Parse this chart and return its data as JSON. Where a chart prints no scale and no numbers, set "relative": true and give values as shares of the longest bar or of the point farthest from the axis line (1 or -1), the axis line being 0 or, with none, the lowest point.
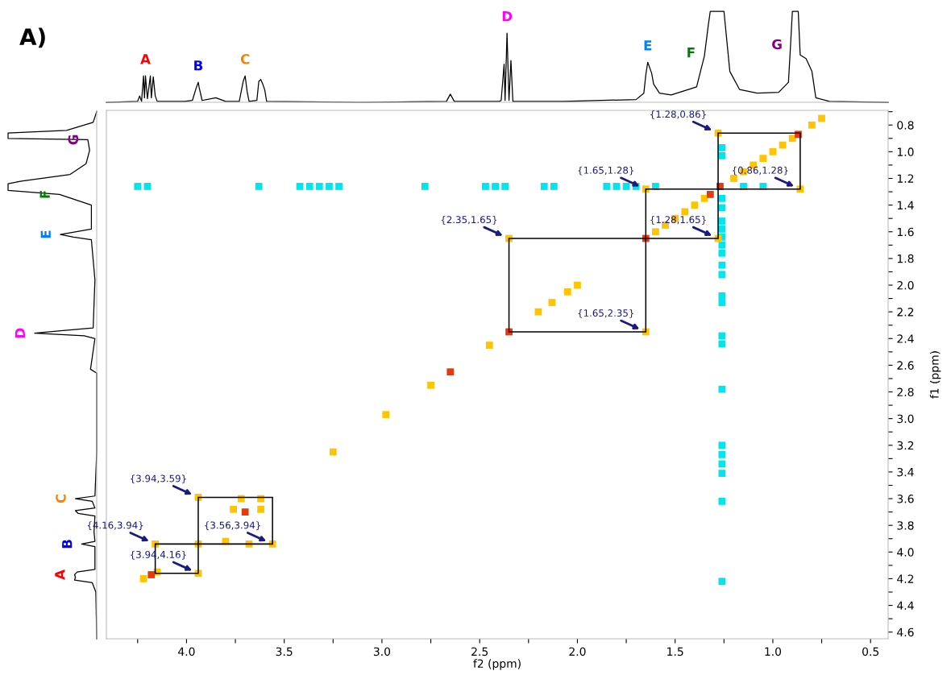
{
  "chart_data": [
    {
      "type": "line",
      "title": "A)",
      "relative": true,
      "xlim": [
        4.41,
        0.41
      ],
      "annotations": [
        {
          "text": "A",
          "x": 4.21,
          "y": 0.29
        },
        {
          "text": "B",
          "x": 3.94,
          "y": 0.22
        },
        {
          "text": "C",
          "x": 3.7,
          "y": 0.29
        },
        {
          "text": "D",
          "x": 2.36,
          "y": 0.76
        },
        {
          "text": "E",
          "x": 1.64,
          "y": 0.44
        },
        {
          "text": "F",
          "x": 1.35,
          "y": 0.51
        },
        {
          "text": "G",
          "x": 0.91,
          "y": 0.6
        }
      ],
      "colors": [
        "#ff0000",
        "#0000ff",
        "#ff8000",
        "#ff00ff",
        "#0080ff",
        "#008000",
        "#800080"
      ],
      "series": [
        {
          "color": "#000000",
          "x": [
            4.41,
            4.25,
            4.24,
            4.23,
            4.22,
            4.215,
            4.21,
            4.2,
            4.185,
            4.18,
            4.17,
            4.16,
            4.15,
            4.01,
            3.97,
            3.95,
            3.94,
            3.935,
            3.92,
            3.85,
            3.8,
            3.73,
            3.72,
            3.71,
            3.7,
            3.69,
            3.68,
            3.64,
            3.63,
            3.62,
            3.61,
            3.6,
            3.59,
            3.1,
            2.67,
            2.65,
            2.63,
            2.4,
            2.39,
            2.375,
            2.37,
            2.36,
            2.35,
            2.34,
            2.33,
            2.07,
            1.7,
            1.66,
            1.65,
            1.64,
            1.62,
            1.61,
            1.58,
            1.52,
            1.39,
            1.35,
            1.33,
            1.32,
            1.25,
            1.22,
            1.17,
            1.08,
            0.97,
            0.92,
            0.91,
            0.9,
            0.87,
            0.86,
            0.83,
            0.8,
            0.78,
            0.71,
            0.41
          ],
          "values": [
            0,
            0.01,
            0.07,
            0.01,
            0.29,
            0.05,
            0.29,
            0.04,
            0.29,
            0.05,
            0.28,
            0.07,
            0.01,
            0.01,
            0.02,
            0.16,
            0.22,
            0.16,
            0.02,
            0.05,
            0.01,
            0.01,
            0.12,
            0.23,
            0.29,
            0.12,
            0.01,
            0.02,
            0.23,
            0.25,
            0.2,
            0.14,
            0.01,
            0,
            0.01,
            0.09,
            0.01,
            0.01,
            0.02,
            0.42,
            0.02,
            0.76,
            0.02,
            0.46,
            0.01,
            0.01,
            0.03,
            0.1,
            0.3,
            0.44,
            0.32,
            0.2,
            0.1,
            0.08,
            0.17,
            0.51,
            0.85,
            1,
            1,
            0.34,
            0.14,
            0.1,
            0.11,
            0.22,
            0.6,
            1,
            1,
            0.52,
            0.48,
            0.34,
            0.05,
            0.01,
            0
          ]
        }
      ]
    },
    {
      "type": "line",
      "orientation": "horizontal",
      "relative": true,
      "ylim": [
        4.65,
        0.69
      ],
      "annotations": [
        {
          "text": "A",
          "x": -0.25,
          "y": 4.17
        },
        {
          "text": "B",
          "x": -0.17,
          "y": 3.94
        },
        {
          "text": "C",
          "x": -0.24,
          "y": 3.6
        },
        {
          "text": "D",
          "x": -0.7,
          "y": 2.36
        },
        {
          "text": "E",
          "x": -0.41,
          "y": 1.62
        },
        {
          "text": "F",
          "x": -0.42,
          "y": 1.32
        },
        {
          "text": "G",
          "x": -0.1,
          "y": 0.91
        }
      ],
      "colors": [
        "#ff0000",
        "#0000ff",
        "#ff8000",
        "#ff00ff",
        "#0080ff",
        "#008000",
        "#800080"
      ],
      "series": [
        {
          "color": "#000000",
          "x": [
            0.7,
            0.78,
            0.84,
            0.86,
            0.9,
            0.91,
            0.99,
            1.09,
            1.17,
            1.22,
            1.24,
            1.29,
            1.32,
            1.4,
            1.58,
            1.62,
            1.64,
            1.66,
            1.96,
            2.32,
            2.34,
            2.36,
            2.38,
            2.4,
            2.63,
            2.66,
            3.25,
            3.58,
            3.6,
            3.62,
            3.67,
            3.69,
            3.71,
            3.73,
            3.85,
            3.92,
            3.94,
            3.96,
            4.13,
            4.15,
            4.17,
            4.19,
            4.21,
            4.23,
            4.3,
            4.65
          ],
          "values": [
            0,
            -0.04,
            -0.34,
            -1,
            -1,
            -0.1,
            -0.08,
            -0.12,
            -0.3,
            -0.85,
            -1,
            -1,
            -0.42,
            -0.06,
            -0.06,
            -0.41,
            -0.26,
            -0.06,
            -0.02,
            -0.04,
            -0.38,
            -0.7,
            -0.14,
            -0.02,
            -0.07,
            0,
            0,
            -0.02,
            -0.24,
            -0.05,
            -0.02,
            -0.24,
            -0.21,
            -0.02,
            -0.03,
            -0.02,
            -0.17,
            -0.02,
            -0.02,
            -0.22,
            -0.25,
            -0.24,
            -0.25,
            -0.05,
            -0.01,
            0
          ]
        }
      ]
    },
    {
      "type": "scatter",
      "xlabel": "f2 (ppm)",
      "ylabel": "f1 (ppm)",
      "xlim": [
        4.41,
        0.41
      ],
      "ylim": [
        4.65,
        0.69
      ],
      "marker": "square",
      "grid": false,
      "legend": false,
      "xticks": [
        {
          "value": 4.25,
          "label": null
        },
        {
          "value": 4,
          "label": "4.0"
        },
        {
          "value": 3.75,
          "label": null
        },
        3.5,
        {
          "value": 3.25,
          "label": null
        },
        {
          "value": 3,
          "label": "3.0"
        },
        {
          "value": 2.75,
          "label": null
        },
        2.5,
        {
          "value": 2.25,
          "label": null
        },
        {
          "value": 2,
          "label": "2.0"
        },
        {
          "value": 1.75,
          "label": null
        },
        1.5,
        {
          "value": 1.25,
          "label": null
        },
        {
          "value": 1,
          "label": "1.0"
        },
        {
          "value": 0.75,
          "label": null
        },
        0.5
      ],
      "yticks": [
        {
          "value": 0.7,
          "label": null
        },
        0.8,
        {
          "value": 0.9,
          "label": null
        },
        {
          "value": 1,
          "label": "1.0"
        },
        {
          "value": 1.1,
          "label": null
        },
        1.2,
        {
          "value": 1.3,
          "label": null
        },
        1.4,
        {
          "value": 1.5,
          "label": null
        },
        1.6,
        {
          "value": 1.7,
          "label": null
        },
        1.8,
        {
          "value": 1.9,
          "label": null
        },
        {
          "value": 2,
          "label": "2.0"
        },
        {
          "value": 2.1,
          "label": null
        },
        2.2,
        {
          "value": 2.3,
          "label": null
        },
        2.4,
        {
          "value": 2.5,
          "label": null
        },
        2.6,
        {
          "value": 2.7,
          "label": null
        },
        2.8,
        {
          "value": 2.9,
          "label": null
        },
        {
          "value": 3,
          "label": "3.0"
        },
        {
          "value": 3.1,
          "label": null
        },
        3.2,
        {
          "value": 3.3,
          "label": null
        },
        3.4,
        {
          "value": 3.5,
          "label": null
        },
        3.6,
        {
          "value": 3.7,
          "label": null
        },
        3.8,
        {
          "value": 3.9,
          "label": null
        },
        {
          "value": 4,
          "label": "4.0"
        },
        {
          "value": 4.1,
          "label": null
        },
        4.2,
        {
          "value": 4.3,
          "label": null
        },
        4.4,
        {
          "value": 4.5,
          "label": null
        },
        4.6
      ],
      "annotations": [
        {
          "text": "{1.28,0.86}",
          "x": 1.28,
          "y": 0.86
        },
        {
          "text": "{0.86,1.28}",
          "x": 0.86,
          "y": 1.28
        },
        {
          "text": "{1.65,1.28}",
          "x": 1.65,
          "y": 1.28
        },
        {
          "text": "{2.35,1.65}",
          "x": 2.35,
          "y": 1.65
        },
        {
          "text": "{1.28,1.65}",
          "x": 1.28,
          "y": 1.65
        },
        {
          "text": "{1.65,2.35}",
          "x": 1.65,
          "y": 2.35
        },
        {
          "text": "{3.94,3.59}",
          "x": 3.94,
          "y": 3.59
        },
        {
          "text": "{4.16,3.94}",
          "x": 4.16,
          "y": 3.94
        },
        {
          "text": "{3.56,3.94}",
          "x": 3.56,
          "y": 3.94
        },
        {
          "text": "{3.94,4.16}",
          "x": 3.94,
          "y": 4.16
        }
      ],
      "series": [
        {
          "color": "#00e5ee",
          "x": [
            4.25,
            4.2,
            3.63,
            3.42,
            3.37,
            3.32,
            3.27,
            3.22,
            2.78,
            2.47,
            2.42,
            2.37,
            2.17,
            2.12,
            1.85,
            1.8,
            1.75,
            1.7,
            1.6,
            1.15,
            1.05,
            1.26,
            1.26,
            1.26,
            1.26,
            1.26,
            1.26,
            1.26,
            1.26,
            1.26,
            1.26,
            1.26,
            1.26,
            1.26,
            1.26,
            1.26,
            1.26,
            1.26,
            1.26,
            1.26,
            1.26,
            1.26,
            1.26
          ],
          "values": [
            1.26,
            1.26,
            1.26,
            1.26,
            1.26,
            1.26,
            1.26,
            1.26,
            1.26,
            1.26,
            1.26,
            1.26,
            1.26,
            1.26,
            1.26,
            1.26,
            1.26,
            1.26,
            1.26,
            1.26,
            1.26,
            0.97,
            1.03,
            1.35,
            1.42,
            1.52,
            1.58,
            1.64,
            1.7,
            1.76,
            1.85,
            1.92,
            2.08,
            2.13,
            2.38,
            2.44,
            2.78,
            3.2,
            3.27,
            3.34,
            3.41,
            3.62,
            4.22
          ]
        },
        {
          "color": "#ffc400",
          "x": [
            3.25,
            2.98,
            2.75,
            2.45,
            2.2,
            2.13,
            2.05,
            2.0,
            1.6,
            1.55,
            1.5,
            1.45,
            1.4,
            1.35,
            1.2,
            1.15,
            1.1,
            1.05,
            1.0,
            0.95,
            0.9,
            0.8,
            0.75,
            2.35,
            1.65,
            1.65,
            1.28,
            1.28,
            0.86,
            3.94,
            3.56,
            4.16,
            3.94,
            3.94,
            3.72,
            3.62,
            3.76,
            3.62,
            3.8,
            4.22,
            4.15,
            3.68
          ],
          "values": [
            3.25,
            2.97,
            2.75,
            2.45,
            2.2,
            2.13,
            2.05,
            2.0,
            1.6,
            1.55,
            1.5,
            1.45,
            1.4,
            1.35,
            1.2,
            1.15,
            1.1,
            1.05,
            1.0,
            0.95,
            0.9,
            0.8,
            0.75,
            1.65,
            2.35,
            1.28,
            1.65,
            0.86,
            1.28,
            3.59,
            3.94,
            3.94,
            4.16,
            3.94,
            3.6,
            3.6,
            3.68,
            3.68,
            3.92,
            4.2,
            4.15,
            3.94
          ]
        },
        {
          "color": "#e8380d",
          "x": [
            2.65,
            2.35,
            1.65,
            1.32,
            1.27,
            0.87,
            4.18,
            3.7
          ],
          "values": [
            2.65,
            2.35,
            1.65,
            1.32,
            1.26,
            0.87,
            4.17,
            3.7
          ]
        }
      ]
    }
  ]
}
